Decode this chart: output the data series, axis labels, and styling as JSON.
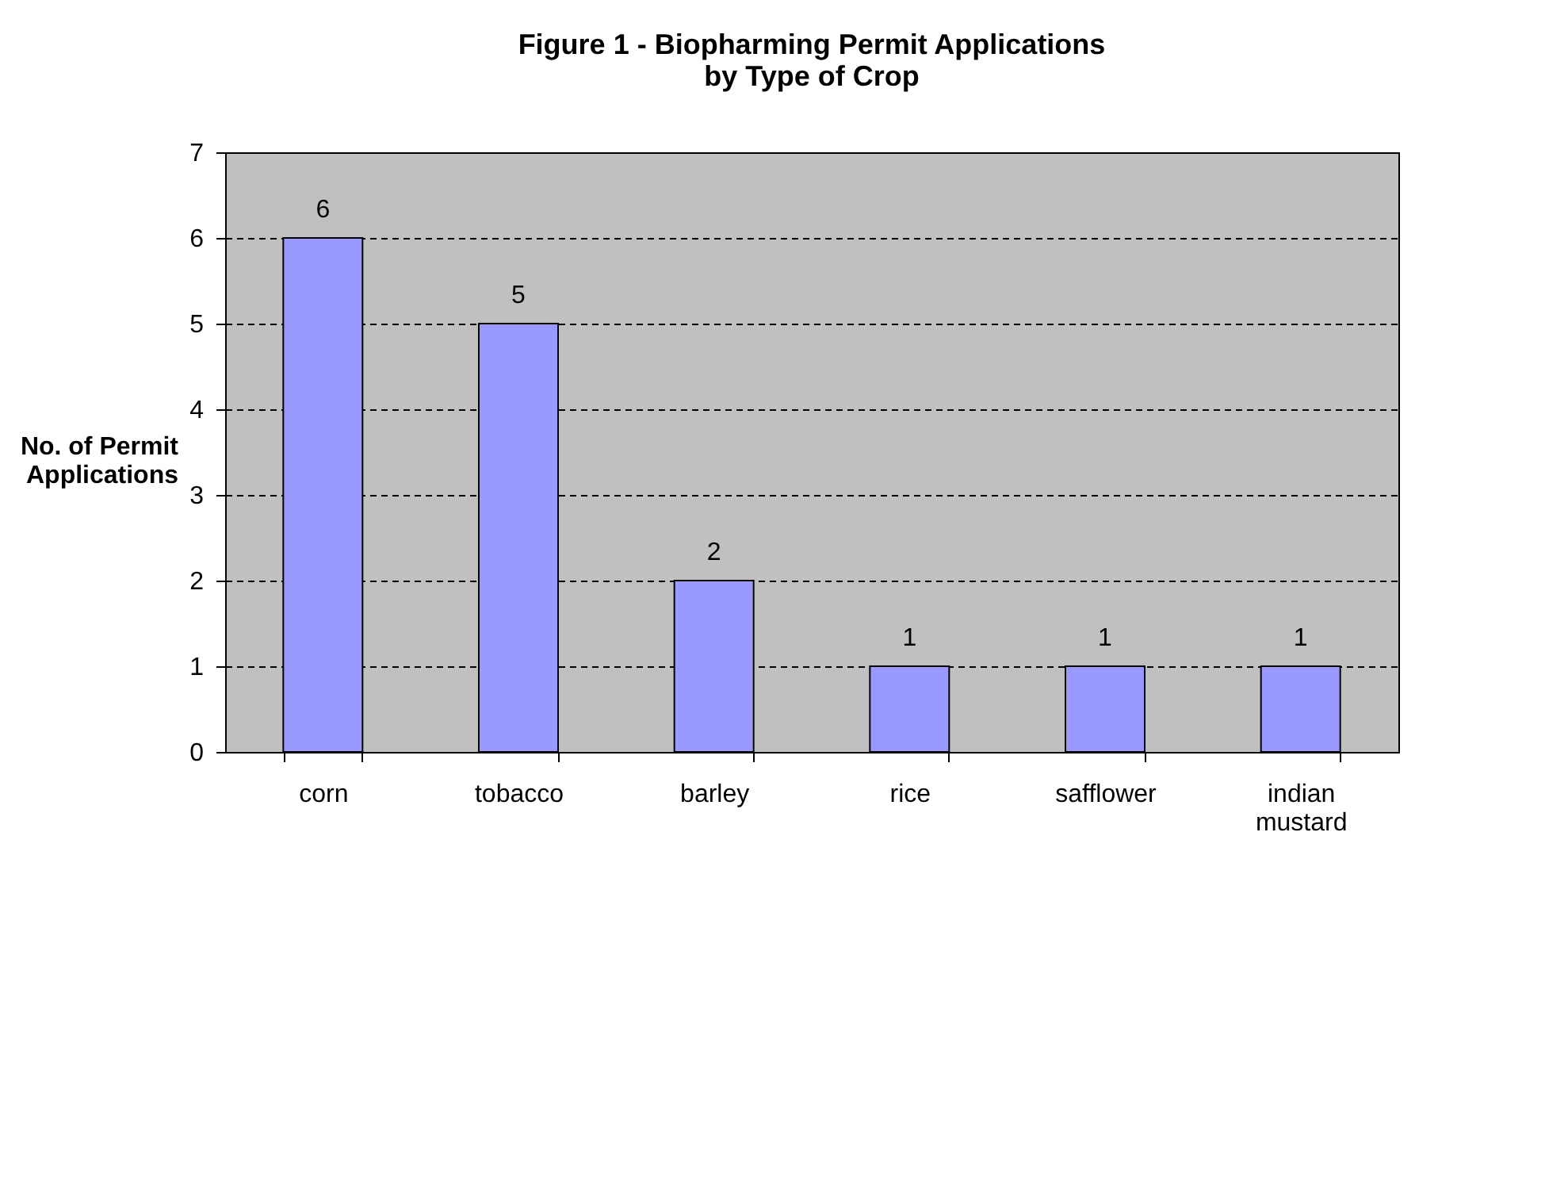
{
  "chart_data": {
    "type": "bar",
    "title": "Figure 1 - Biopharming Permit Applications\nby Type of Crop",
    "ylabel": "No. of Permit\nApplications",
    "categories": [
      "corn",
      "tobacco",
      "barley",
      "rice",
      "safflower",
      "indian mustard"
    ],
    "values": [
      6,
      5,
      2,
      1,
      1,
      1
    ],
    "color": "#9999ff",
    "ylim": [
      0,
      7
    ],
    "yticks": [
      0,
      1,
      2,
      3,
      4,
      5,
      6,
      7
    ],
    "grid": "y",
    "data_labels": true
  }
}
